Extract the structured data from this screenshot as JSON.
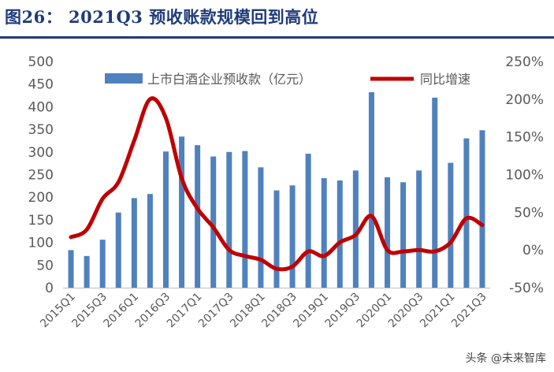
{
  "title": "图26：  2021Q3 预收账款规模回到高位",
  "watermark": "头条 @未来智库",
  "colors": {
    "bar": "#4f81bd",
    "line": "#c00000",
    "title": "#1f3b7a",
    "axis_text": "#595959"
  },
  "chart_data": {
    "type": "bar+line",
    "categories": [
      "2015Q1",
      "2015Q2",
      "2015Q3",
      "2015Q4",
      "2016Q1",
      "2016Q2",
      "2016Q3",
      "2016Q4",
      "2017Q1",
      "2017Q2",
      "2017Q3",
      "2017Q4",
      "2018Q1",
      "2018Q2",
      "2018Q3",
      "2018Q4",
      "2019Q1",
      "2019Q2",
      "2019Q3",
      "2019Q4",
      "2020Q1",
      "2020Q2",
      "2020Q3",
      "2020Q4",
      "2021Q1",
      "2021Q2",
      "2021Q3"
    ],
    "x_tick_labels": [
      "2015Q1",
      "2015Q3",
      "2016Q1",
      "2016Q3",
      "2017Q1",
      "2017Q3",
      "2018Q1",
      "2018Q3",
      "2019Q1",
      "2019Q3",
      "2020Q1",
      "2020Q3",
      "2021Q1",
      "2021Q3"
    ],
    "series": [
      {
        "name": "上市白酒企业预收款（亿元）",
        "type": "bar",
        "axis": "left",
        "values": [
          83,
          70,
          106,
          166,
          198,
          207,
          301,
          334,
          315,
          290,
          300,
          302,
          266,
          215,
          226,
          296,
          242,
          237,
          259,
          432,
          244,
          233,
          259,
          420,
          276,
          330,
          348
        ]
      },
      {
        "name": "同比增速",
        "type": "line",
        "axis": "right",
        "values": [
          17,
          27,
          68,
          90,
          145,
          200,
          175,
          95,
          55,
          30,
          0,
          -8,
          -13,
          -25,
          -22,
          -2,
          -8,
          10,
          20,
          45,
          0,
          -2,
          0,
          -2,
          10,
          42,
          33
        ]
      }
    ],
    "y_left": {
      "min": 0,
      "max": 500,
      "step": 50,
      "ticks": [
        "0",
        "50",
        "100",
        "150",
        "200",
        "250",
        "300",
        "350",
        "400",
        "450",
        "500"
      ]
    },
    "y_right": {
      "min": -50,
      "max": 250,
      "step": 50,
      "ticks": [
        "-50%",
        "0%",
        "50%",
        "100%",
        "150%",
        "200%",
        "250%"
      ]
    },
    "legend_position": "top"
  }
}
